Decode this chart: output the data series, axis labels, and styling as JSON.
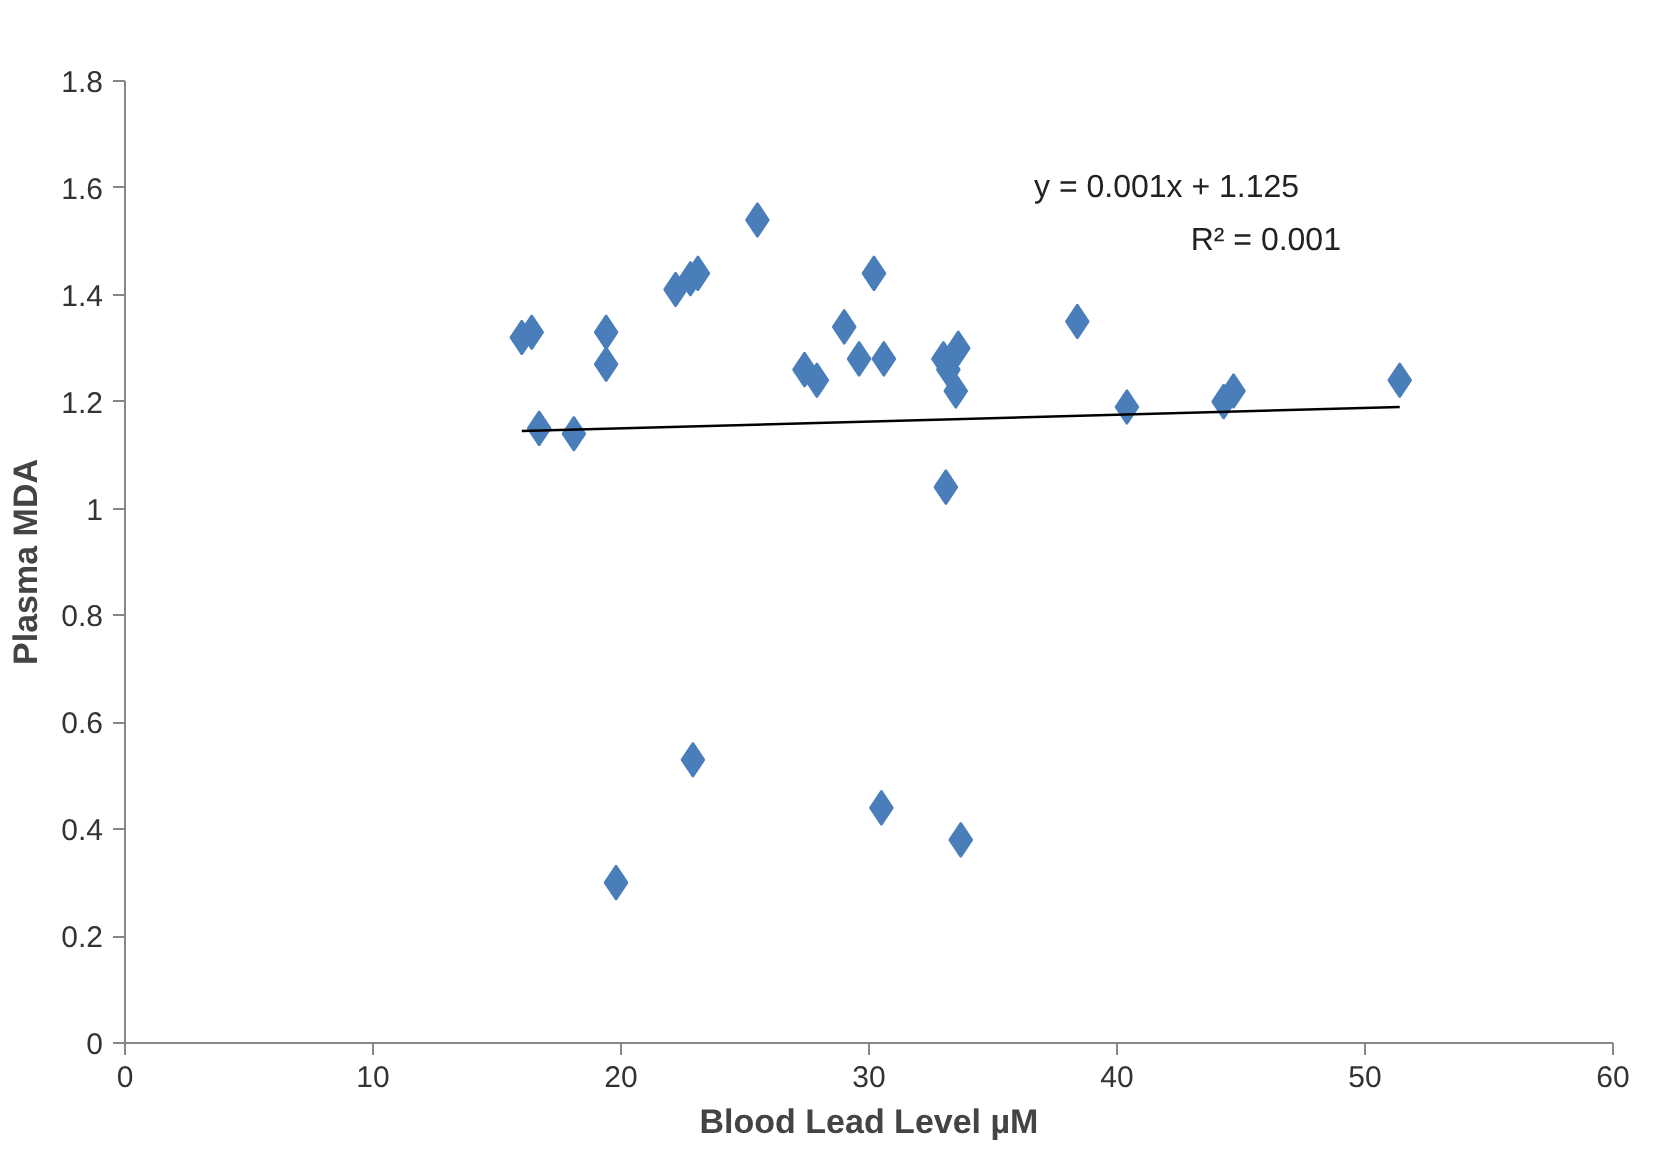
{
  "chart_data": {
    "type": "scatter",
    "xlabel": "Blood Lead Level µM",
    "ylabel": "Plasma MDA",
    "xlim": [
      0,
      60
    ],
    "xticks": [
      0,
      10,
      20,
      30,
      40,
      50,
      60
    ],
    "ylim": [
      0,
      1.8
    ],
    "yticks": [
      {
        "value": 0,
        "label": "0"
      },
      0.2,
      0.4,
      0.6,
      0.8,
      {
        "value": 1,
        "label": "1"
      },
      1.2,
      1.4,
      1.6,
      1.8
    ],
    "grid": false,
    "marker": "diamond",
    "annotations": [
      "y = 0.001x + 1.125",
      "R² = 0.001"
    ],
    "series": [
      {
        "color": "#4a7ebb",
        "x": [
          16,
          16.4,
          16.7,
          18.1,
          19.4,
          19.4,
          22.2,
          22.8,
          23.1,
          25.5,
          27.4,
          27.9,
          29,
          29.6,
          30.2,
          30.6,
          33,
          33.2,
          33.6,
          33.5,
          33.1,
          38.4,
          40.4,
          44.3,
          44.7,
          51.4,
          19.8,
          22.9,
          30.5,
          33.7
        ],
        "values": [
          1.32,
          1.33,
          1.15,
          1.14,
          1.33,
          1.27,
          1.41,
          1.43,
          1.44,
          1.54,
          1.26,
          1.24,
          1.34,
          1.28,
          1.44,
          1.28,
          1.28,
          1.26,
          1.3,
          1.22,
          1.04,
          1.35,
          1.19,
          1.2,
          1.22,
          1.24,
          0.3,
          0.53,
          0.44,
          0.38
        ]
      },
      {
        "type": "line",
        "marker": "none",
        "color": "#000000",
        "x": [
          16,
          51.4
        ],
        "values": [
          1.145,
          1.19
        ]
      }
    ]
  }
}
